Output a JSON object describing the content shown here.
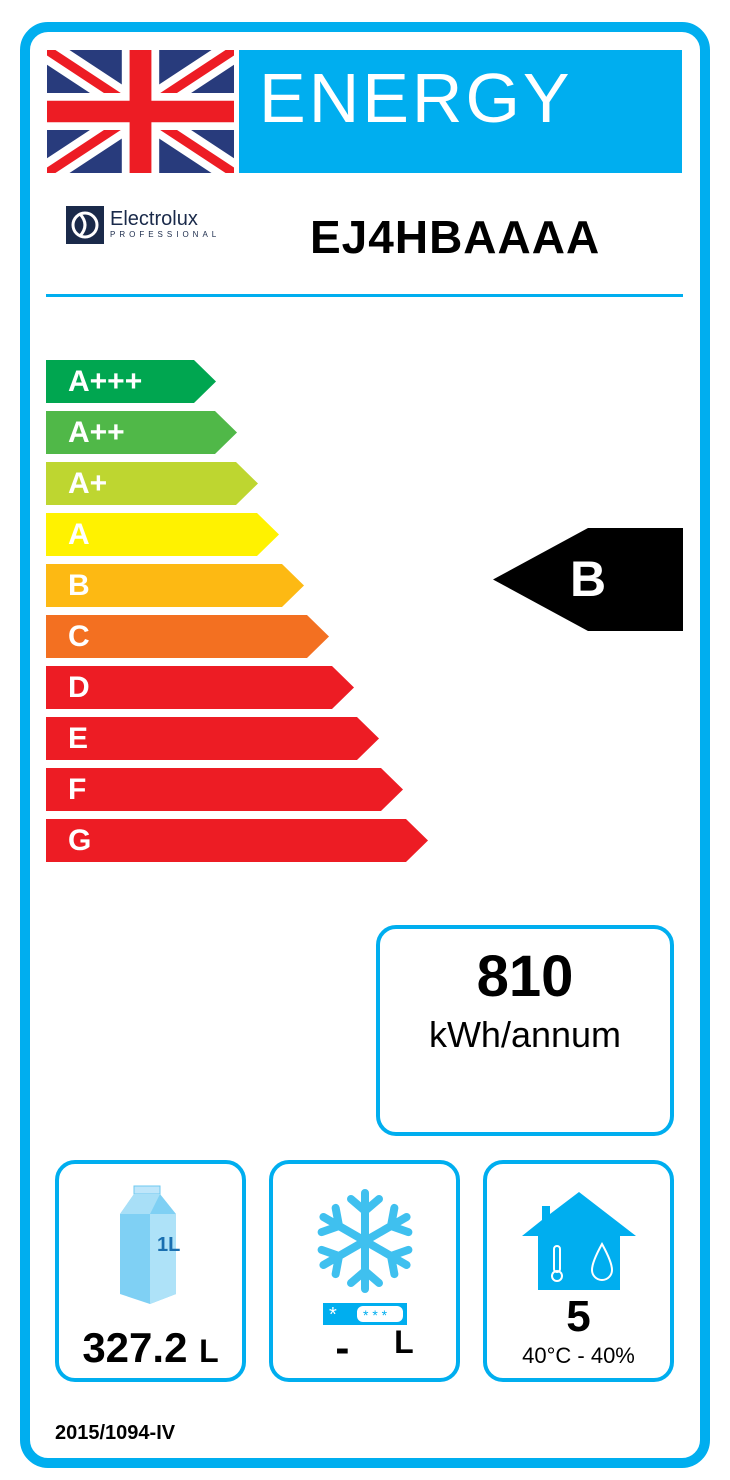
{
  "header": {
    "title": "ENERGY",
    "flag": "united-kingdom-flag",
    "brand": "Electrolux",
    "brand_sub": "PROFESSIONAL",
    "model": "EJ4HBAAAA"
  },
  "scale": [
    {
      "label": "A+++",
      "color": "#00a650"
    },
    {
      "label": "A++",
      "color": "#50b848"
    },
    {
      "label": "A+",
      "color": "#bed630"
    },
    {
      "label": "A",
      "color": "#fff200"
    },
    {
      "label": "B",
      "color": "#fdb913"
    },
    {
      "label": "C",
      "color": "#f37021"
    },
    {
      "label": "D",
      "color": "#ed1c24"
    },
    {
      "label": "E",
      "color": "#ed1c24"
    },
    {
      "label": "F",
      "color": "#ed1c24"
    },
    {
      "label": "G",
      "color": "#ed1c24"
    }
  ],
  "rating": "B",
  "consumption": {
    "value": "810",
    "unit": "kWh/annum"
  },
  "chilled": {
    "value": "327.2",
    "unit": "L",
    "icon": "milk-carton-icon",
    "carton_label": "1L"
  },
  "frozen": {
    "value": "-",
    "unit": "L",
    "icon": "snowflake-icon"
  },
  "climate": {
    "class": "5",
    "conditions": "40°C - 40%",
    "icon": "house-climate-icon"
  },
  "regulation": "2015/1094-IV",
  "colors": {
    "accent": "#00aeef"
  }
}
